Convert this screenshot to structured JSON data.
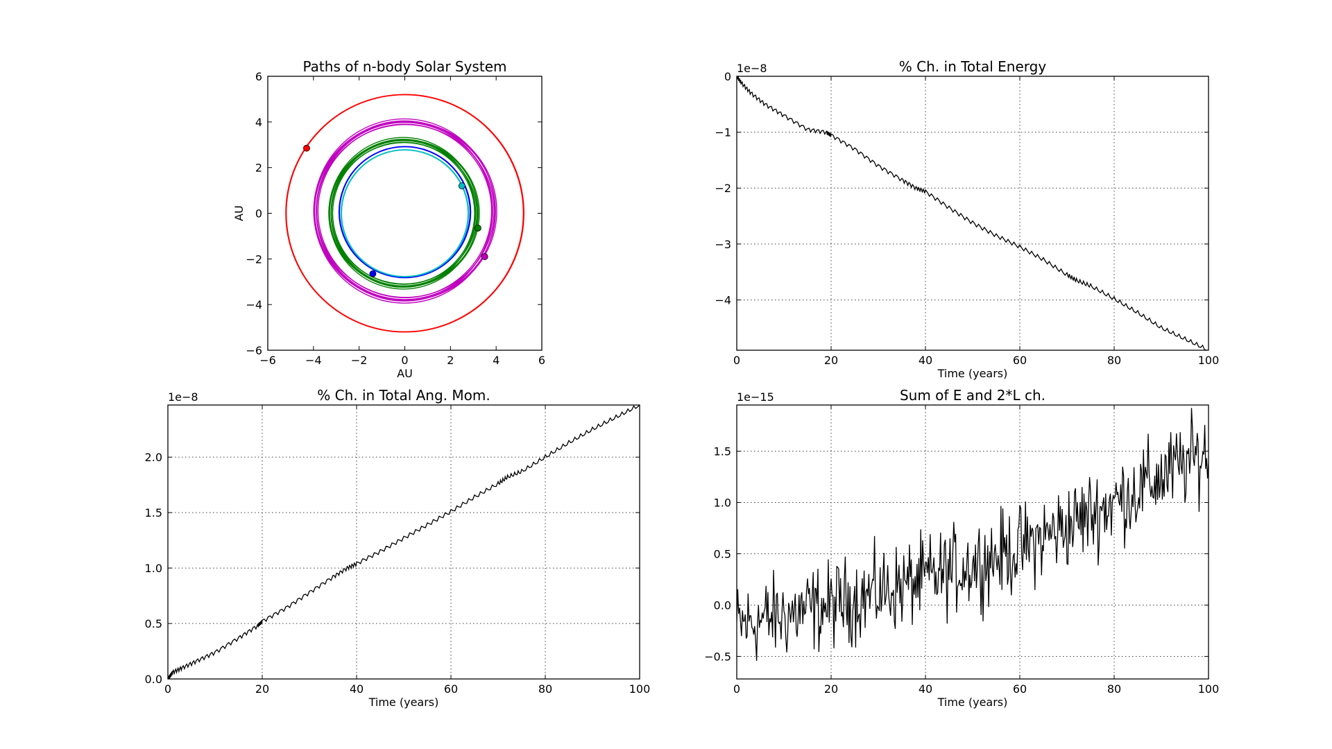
{
  "figure": {
    "background": "#ffffff"
  },
  "chart_data": [
    {
      "id": "orbits",
      "type": "scatter",
      "title": "Paths of n-body Solar System",
      "xlabel": "AU",
      "ylabel": "AU",
      "xlim": [
        -6,
        6
      ],
      "ylim": [
        -6,
        6
      ],
      "xticks": [
        -6,
        -4,
        -2,
        0,
        2,
        4,
        6
      ],
      "yticks": [
        -6,
        -4,
        -2,
        0,
        2,
        4,
        6
      ],
      "xtick_labels": [
        "−6",
        "−4",
        "−2",
        "0",
        "2",
        "4",
        "6"
      ],
      "ytick_labels": [
        "−6",
        "−4",
        "−2",
        "0",
        "2",
        "4",
        "6"
      ],
      "grid": false,
      "series": [
        {
          "color": "#ff0000",
          "radius": 5.2,
          "cx": 0.0,
          "cy": 0.0,
          "spread": 0.02,
          "body": [
            -4.3,
            2.85
          ]
        },
        {
          "color": "#bf00bf",
          "radius": 3.9,
          "cx": 0.0,
          "cy": 0.1,
          "spread": 0.2,
          "body": [
            3.5,
            -1.9
          ]
        },
        {
          "color": "#008000",
          "radius": 3.2,
          "cx": -0.05,
          "cy": 0.0,
          "spread": 0.18,
          "body": [
            3.2,
            -0.65
          ]
        },
        {
          "color": "#0000ff",
          "radius": 2.87,
          "cx": 0.0,
          "cy": 0.05,
          "spread": 0.02,
          "body": [
            -1.4,
            -2.65
          ]
        },
        {
          "color": "#00bfbf",
          "radius": 2.78,
          "cx": 0.0,
          "cy": 0.0,
          "spread": 0.02,
          "body": [
            2.5,
            1.2
          ]
        }
      ]
    },
    {
      "id": "energy",
      "type": "line",
      "title": "% Ch. in Total Energy",
      "xlabel": "Time (years)",
      "ylabel": "",
      "offset_text": "1e−8",
      "xlim": [
        0,
        100
      ],
      "ylim": [
        -4.9,
        0
      ],
      "xticks": [
        0,
        20,
        40,
        60,
        80,
        100
      ],
      "yticks": [
        0,
        -1,
        -2,
        -3,
        -4
      ],
      "xtick_labels": [
        "0",
        "20",
        "40",
        "60",
        "80",
        "100"
      ],
      "ytick_labels": [
        "0",
        "−1",
        "−2",
        "−3",
        "−4"
      ],
      "grid": true,
      "x": [
        0,
        1,
        3,
        6,
        10,
        15,
        19,
        20,
        25,
        30,
        35,
        38,
        40,
        45,
        50,
        55,
        60,
        65,
        70,
        72,
        75,
        80,
        85,
        90,
        95,
        100
      ],
      "y": [
        0,
        -0.12,
        -0.3,
        -0.5,
        -0.7,
        -0.95,
        -1.0,
        -1.05,
        -1.3,
        -1.6,
        -1.85,
        -2.0,
        -2.06,
        -2.35,
        -2.62,
        -2.85,
        -3.05,
        -3.28,
        -3.55,
        -3.65,
        -3.75,
        -3.98,
        -4.23,
        -4.5,
        -4.7,
        -4.9
      ],
      "color": "#000000"
    },
    {
      "id": "angmom",
      "type": "line",
      "title": "% Ch. in Total Ang. Mom.",
      "xlabel": "Time (years)",
      "ylabel": "",
      "offset_text": "1e−8",
      "xlim": [
        0,
        100
      ],
      "ylim": [
        0,
        2.47
      ],
      "xticks": [
        0,
        20,
        40,
        60,
        80,
        100
      ],
      "yticks": [
        0.0,
        0.5,
        1.0,
        1.5,
        2.0
      ],
      "xtick_labels": [
        "0",
        "20",
        "40",
        "60",
        "80",
        "100"
      ],
      "ytick_labels": [
        "0.0",
        "0.5",
        "1.0",
        "1.5",
        "2.0"
      ],
      "grid": true,
      "x": [
        0,
        0.5,
        1,
        3,
        6,
        10,
        15,
        19,
        20,
        25,
        30,
        35,
        38,
        40,
        45,
        50,
        55,
        60,
        65,
        70,
        72,
        75,
        80,
        85,
        90,
        95,
        100
      ],
      "y": [
        0,
        0.03,
        0.06,
        0.1,
        0.16,
        0.24,
        0.37,
        0.48,
        0.52,
        0.64,
        0.78,
        0.92,
        1.0,
        1.04,
        1.15,
        1.27,
        1.39,
        1.51,
        1.64,
        1.76,
        1.82,
        1.87,
        2.0,
        2.13,
        2.25,
        2.36,
        2.47
      ],
      "color": "#000000"
    },
    {
      "id": "sum",
      "type": "line",
      "title": "Sum of E and 2*L ch.",
      "xlabel": "Time (years)",
      "ylabel": "",
      "offset_text": "1e−15",
      "xlim": [
        0,
        100
      ],
      "ylim": [
        -0.72,
        1.95
      ],
      "xticks": [
        0,
        20,
        40,
        60,
        80,
        100
      ],
      "yticks": [
        -0.5,
        0.0,
        0.5,
        1.0,
        1.5
      ],
      "xtick_labels": [
        "0",
        "20",
        "40",
        "60",
        "80",
        "100"
      ],
      "ytick_labels": [
        "−0.5",
        "0.0",
        "0.5",
        "1.0",
        "1.5"
      ],
      "grid": true,
      "trend": {
        "x": [
          0,
          20,
          40,
          60,
          80,
          100
        ],
        "y": [
          -0.2,
          0.0,
          0.25,
          0.55,
          1.0,
          1.5
        ]
      },
      "noise_amplitude": 0.32,
      "n_points": 500,
      "color": "#000000"
    }
  ]
}
